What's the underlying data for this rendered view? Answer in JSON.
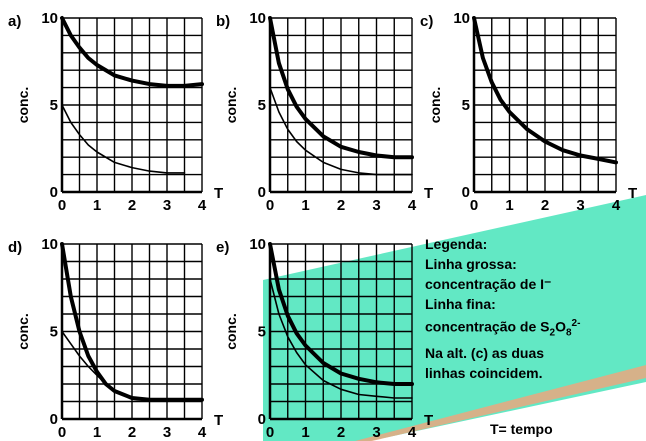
{
  "chart_data": [
    {
      "panel": "a)",
      "type": "line",
      "ylabel": "conc.",
      "xlabel": "T",
      "xlim": [
        0,
        4
      ],
      "ylim": [
        0,
        10
      ],
      "xticks": [
        "0",
        "1",
        "2",
        "3",
        "4"
      ],
      "yticks": [
        "0",
        "5",
        "10"
      ],
      "grid": true,
      "series": [
        {
          "style": "thick",
          "x": [
            0,
            0.25,
            0.5,
            0.75,
            1,
            1.5,
            2,
            2.5,
            3,
            3.5,
            4
          ],
          "y": [
            10,
            9.0,
            8.3,
            7.7,
            7.3,
            6.7,
            6.4,
            6.2,
            6.1,
            6.1,
            6.2
          ]
        },
        {
          "style": "thin",
          "x": [
            0,
            0.25,
            0.5,
            0.75,
            1,
            1.5,
            2,
            2.5,
            3,
            3.5
          ],
          "y": [
            5.0,
            4.0,
            3.3,
            2.7,
            2.3,
            1.7,
            1.4,
            1.2,
            1.1,
            1.1
          ]
        }
      ]
    },
    {
      "panel": "b)",
      "type": "line",
      "ylabel": "conc.",
      "xlabel": "T",
      "xlim": [
        0,
        4
      ],
      "ylim": [
        0,
        10
      ],
      "xticks": [
        "0",
        "1",
        "2",
        "3",
        "4"
      ],
      "yticks": [
        "0",
        "5",
        "10"
      ],
      "grid": true,
      "series": [
        {
          "style": "thick",
          "x": [
            0,
            0.25,
            0.5,
            0.75,
            1,
            1.5,
            2,
            2.5,
            3,
            3.5,
            4
          ],
          "y": [
            10,
            7.4,
            5.9,
            4.9,
            4.2,
            3.2,
            2.6,
            2.3,
            2.1,
            2.0,
            2.0
          ]
        },
        {
          "style": "thin",
          "x": [
            0,
            0.25,
            0.5,
            0.75,
            1,
            1.5,
            2,
            2.5,
            3,
            3.5,
            4
          ],
          "y": [
            6.0,
            4.6,
            3.6,
            2.9,
            2.4,
            1.7,
            1.3,
            1.1,
            1.0,
            1.0,
            1.0
          ]
        }
      ]
    },
    {
      "panel": "c)",
      "type": "line",
      "ylabel": "conc.",
      "xlabel": "T",
      "xlim": [
        0,
        4
      ],
      "ylim": [
        0,
        10
      ],
      "xticks": [
        "0",
        "1",
        "2",
        "3",
        "4"
      ],
      "yticks": [
        "0",
        "5",
        "10"
      ],
      "grid": true,
      "series": [
        {
          "style": "thick",
          "x": [
            0,
            0.25,
            0.5,
            0.75,
            1,
            1.5,
            2,
            2.5,
            3,
            3.5,
            4
          ],
          "y": [
            10,
            7.7,
            6.3,
            5.3,
            4.6,
            3.6,
            2.9,
            2.4,
            2.1,
            1.9,
            1.7
          ]
        }
      ]
    },
    {
      "panel": "d)",
      "type": "line",
      "ylabel": "conc.",
      "xlabel": "T",
      "xlim": [
        0,
        4
      ],
      "ylim": [
        0,
        10
      ],
      "xticks": [
        "0",
        "1",
        "2",
        "3",
        "4"
      ],
      "yticks": [
        "0",
        "5",
        "10"
      ],
      "grid": true,
      "series": [
        {
          "style": "thick",
          "x": [
            0,
            0.25,
            0.5,
            0.75,
            1,
            1.25,
            1.5,
            2,
            2.5,
            3,
            3.5,
            4
          ],
          "y": [
            10,
            7.0,
            5.0,
            3.6,
            2.7,
            2.0,
            1.6,
            1.2,
            1.1,
            1.1,
            1.1,
            1.1
          ]
        },
        {
          "style": "thin",
          "x": [
            0,
            0.25,
            0.5,
            0.75,
            1,
            1.25,
            1.5,
            2
          ],
          "y": [
            5.0,
            4.3,
            3.6,
            3.0,
            2.5,
            2.0,
            1.6,
            1.2
          ]
        }
      ]
    },
    {
      "panel": "e)",
      "type": "line",
      "ylabel": "conc.",
      "xlabel": "T",
      "xlim": [
        0,
        4
      ],
      "ylim": [
        0,
        10
      ],
      "xticks": [
        "0",
        "1",
        "2",
        "3",
        "4"
      ],
      "yticks": [
        "0",
        "5",
        "10"
      ],
      "grid": true,
      "series": [
        {
          "style": "thick",
          "x": [
            0,
            0.25,
            0.5,
            0.75,
            1,
            1.5,
            2,
            2.5,
            3,
            3.5,
            4
          ],
          "y": [
            10,
            7.4,
            5.9,
            4.9,
            4.2,
            3.2,
            2.6,
            2.3,
            2.1,
            2.0,
            2.0
          ]
        },
        {
          "style": "thin",
          "x": [
            0,
            0.25,
            0.5,
            0.75,
            1,
            1.5,
            2,
            2.5,
            3,
            3.5,
            4
          ],
          "y": [
            8.0,
            6.0,
            4.7,
            3.8,
            3.1,
            2.2,
            1.7,
            1.4,
            1.3,
            1.2,
            1.2
          ]
        }
      ]
    }
  ],
  "legend": {
    "title": "Legenda:",
    "thick_label_1": "Linha grossa:",
    "thick_label_2": "concentração de I⁻",
    "thin_label_1": "Linha fina:",
    "thin_label_2": "concentração de S",
    "thin_sub": "2",
    "thin_o": "O",
    "thin_sub2": "8",
    "thin_sup": "2-",
    "note_1": "Na alt. (c) as duas",
    "note_2": "linhas coincidem.",
    "t_label": "T= tempo"
  },
  "colors": {
    "overlay_fill": "#2ee0b0",
    "overlay_edge": "#f4a37b",
    "text": "#000000"
  }
}
